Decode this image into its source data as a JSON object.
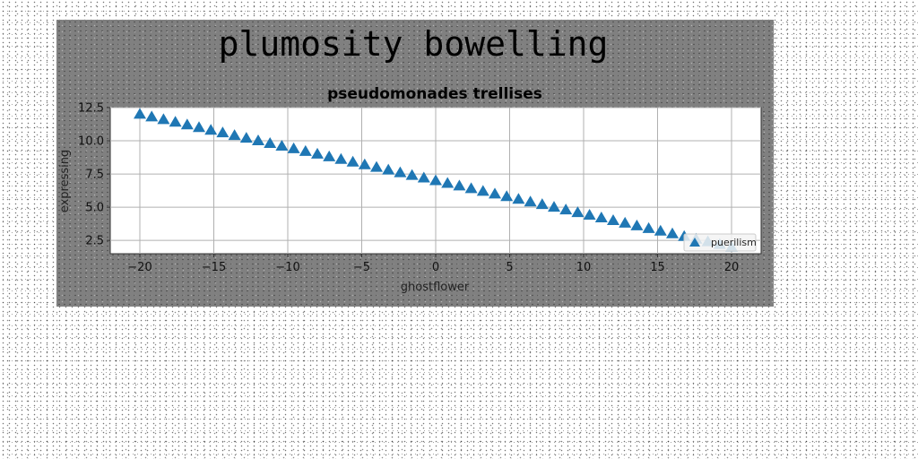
{
  "figure": {
    "suptitle": "plumosity bowelling"
  },
  "chart_data": {
    "type": "scatter",
    "title": "pseudomonades trellises",
    "xlabel": "ghostflower",
    "ylabel": "expressing",
    "xlim": [
      -22,
      22
    ],
    "ylim": [
      1.5,
      12.5
    ],
    "xticks": [
      -20,
      -15,
      -10,
      -5,
      0,
      5,
      10,
      15,
      20
    ],
    "yticks": [
      2.5,
      5.0,
      7.5,
      10.0,
      12.5
    ],
    "xtick_labels": [
      "−20",
      "−15",
      "−10",
      "−5",
      "0",
      "5",
      "10",
      "15",
      "20"
    ],
    "ytick_labels": [
      "2.5",
      "5.0",
      "7.5",
      "10.0",
      "12.5"
    ],
    "grid": true,
    "legend_position": "lower-right",
    "series": [
      {
        "name": "puerilism",
        "marker": "triangle-up",
        "color": "#1f77b4",
        "x": [
          -20,
          -19.2,
          -18.4,
          -17.6,
          -16.8,
          -16,
          -15.2,
          -14.4,
          -13.6,
          -12.8,
          -12,
          -11.2,
          -10.4,
          -9.6,
          -8.8,
          -8,
          -7.2,
          -6.4,
          -5.6,
          -4.8,
          -4,
          -3.2,
          -2.4,
          -1.6,
          -0.8,
          0,
          0.8,
          1.6,
          2.4,
          3.2,
          4,
          4.8,
          5.6,
          6.4,
          7.2,
          8,
          8.8,
          9.6,
          10.4,
          11.2,
          12,
          12.8,
          13.6,
          14.4,
          15.2,
          16,
          16.8,
          17.6,
          18.4,
          19.2,
          20
        ],
        "y": [
          12.0,
          11.8,
          11.6,
          11.4,
          11.2,
          11.0,
          10.8,
          10.6,
          10.4,
          10.2,
          10.0,
          9.8,
          9.6,
          9.4,
          9.2,
          9.0,
          8.8,
          8.6,
          8.4,
          8.2,
          8.0,
          7.8,
          7.6,
          7.4,
          7.2,
          7.0,
          6.8,
          6.6,
          6.4,
          6.2,
          6.0,
          5.8,
          5.6,
          5.4,
          5.2,
          5.0,
          4.8,
          4.6,
          4.4,
          4.2,
          4.0,
          3.8,
          3.6,
          3.4,
          3.2,
          3.0,
          2.8,
          2.6,
          2.4,
          2.2,
          2.0
        ]
      }
    ]
  }
}
